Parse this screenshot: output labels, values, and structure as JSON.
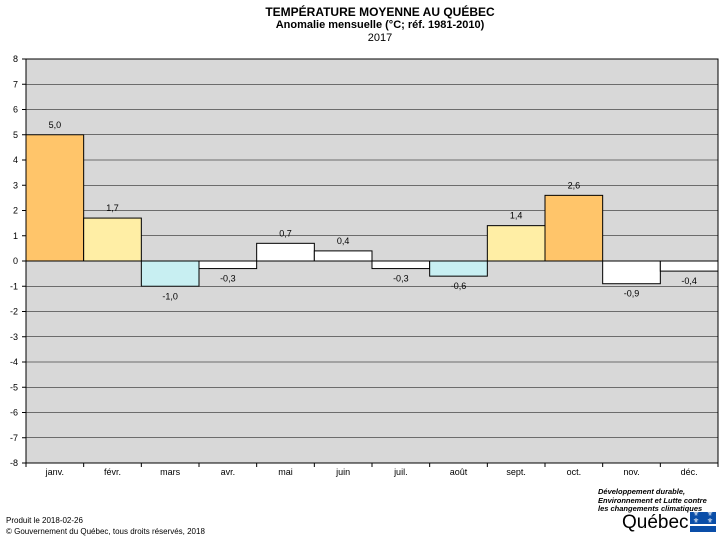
{
  "chart_data": {
    "type": "bar",
    "title": "TEMPÉRATURE MOYENNE AU QUÉBEC",
    "subtitle": "Anomalie mensuelle (°C; réf. 1981-2010)",
    "year": "2017",
    "categories": [
      "janv.",
      "févr.",
      "mars",
      "avr.",
      "mai",
      "juin",
      "juil.",
      "août",
      "sept.",
      "oct.",
      "nov.",
      "déc."
    ],
    "values": [
      5.0,
      1.7,
      -1.0,
      -0.3,
      0.7,
      0.4,
      -0.3,
      -0.6,
      1.4,
      2.6,
      -0.9,
      -0.4
    ],
    "value_labels": [
      "5,0",
      "1,7",
      "-1,0",
      "-0,3",
      "0,7",
      "0,4",
      "-0,3",
      "-0,6",
      "1,4",
      "2,6",
      "-0,9",
      "-0,4"
    ],
    "bar_colors": [
      "#ffc56a",
      "#ffeea5",
      "#c8eff2",
      "#ffffff",
      "#ffffff",
      "#ffffff",
      "#ffffff",
      "#c8eff2",
      "#ffeea5",
      "#ffc56a",
      "#ffffff",
      "#ffffff"
    ],
    "ylim": [
      -8,
      8
    ],
    "yticks": [
      "-8",
      "-7",
      "-6",
      "-5",
      "-4",
      "-3",
      "-2",
      "-1",
      "0",
      "1",
      "2",
      "3",
      "4",
      "5",
      "6",
      "7",
      "8"
    ],
    "grid": true,
    "plot_background": "#d8d8d8"
  },
  "footer": {
    "produced": "Produit le 2018-02-26",
    "copyright": "© Gouvernement du Québec, tous droits réservés, 2018"
  },
  "logo": {
    "ministry": "Développement durable, Environnement et Lutte contre les changements climatiques",
    "wordmark": "Québec",
    "brand_color": "#0a4ea8"
  }
}
